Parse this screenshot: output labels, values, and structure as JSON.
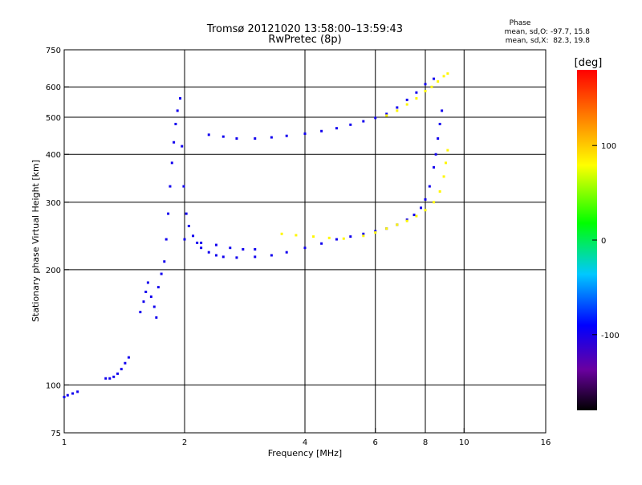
{
  "chart_data": {
    "type": "scatter",
    "title": "Tromsø 20121020 13:58:00–13:59:43",
    "subtitle": "RwPretec (8p)",
    "xlabel": "Frequency [MHz]",
    "ylabel": "Stationary phase Virtual Height [km]",
    "xscale": "log",
    "yscale": "log",
    "xlim": [
      1,
      16
    ],
    "ylim": [
      75,
      750
    ],
    "x_ticks": [
      1,
      2,
      4,
      6,
      8,
      10,
      16
    ],
    "x_tick_labels": [
      "1",
      "2",
      "4",
      "6",
      "8",
      "10",
      "16"
    ],
    "y_ticks": [
      75,
      100,
      200,
      300,
      400,
      500,
      600,
      750
    ],
    "y_tick_labels": [
      "75",
      "100",
      "200",
      "300",
      "400",
      "500",
      "600",
      "750"
    ],
    "x_gridlines": [
      2,
      4,
      6,
      8,
      10
    ],
    "y_gridlines": [
      100,
      200,
      300,
      400,
      500,
      600
    ],
    "grid": true,
    "phase_info": {
      "title": "Phase",
      "line1": "mean, sd,O: -97.7, 15.8",
      "line2": "mean, sd,X:  82.3, 19.8"
    },
    "colorbar": {
      "label": "[deg]",
      "min": -180,
      "max": 180,
      "ticks": [
        100,
        0,
        -100
      ],
      "tick_labels": [
        "100",
        "0",
        "-100"
      ],
      "colormap": "rainbow (black-purple-blue-cyan-green-yellow-orange-red)"
    },
    "series": [
      {
        "name": "O",
        "color_phase": -97.7,
        "points": [
          [
            1.0,
            93
          ],
          [
            1.02,
            94
          ],
          [
            1.05,
            95
          ],
          [
            1.08,
            96
          ],
          [
            1.27,
            104
          ],
          [
            1.3,
            104
          ],
          [
            1.33,
            105
          ],
          [
            1.36,
            107
          ],
          [
            1.39,
            110
          ],
          [
            1.42,
            114
          ],
          [
            1.45,
            118
          ],
          [
            1.55,
            155
          ],
          [
            1.58,
            165
          ],
          [
            1.6,
            175
          ],
          [
            1.62,
            185
          ],
          [
            1.65,
            170
          ],
          [
            1.68,
            160
          ],
          [
            1.7,
            150
          ],
          [
            1.72,
            180
          ],
          [
            1.75,
            195
          ],
          [
            1.78,
            210
          ],
          [
            1.8,
            240
          ],
          [
            1.82,
            280
          ],
          [
            1.84,
            330
          ],
          [
            1.86,
            380
          ],
          [
            1.88,
            430
          ],
          [
            1.9,
            480
          ],
          [
            1.92,
            520
          ],
          [
            1.95,
            560
          ],
          [
            1.97,
            420
          ],
          [
            1.99,
            330
          ],
          [
            2.02,
            280
          ],
          [
            2.05,
            260
          ],
          [
            2.1,
            245
          ],
          [
            2.15,
            235
          ],
          [
            2.2,
            228
          ],
          [
            2.3,
            222
          ],
          [
            2.4,
            218
          ],
          [
            2.5,
            216
          ],
          [
            2.7,
            215
          ],
          [
            3.0,
            216
          ],
          [
            3.3,
            218
          ],
          [
            3.6,
            222
          ],
          [
            4.0,
            228
          ],
          [
            4.4,
            234
          ],
          [
            4.8,
            240
          ],
          [
            5.2,
            244
          ],
          [
            5.6,
            248
          ],
          [
            6.0,
            252
          ],
          [
            6.4,
            256
          ],
          [
            6.8,
            262
          ],
          [
            7.2,
            270
          ],
          [
            7.5,
            278
          ],
          [
            7.8,
            290
          ],
          [
            8.0,
            305
          ],
          [
            8.2,
            330
          ],
          [
            8.4,
            370
          ],
          [
            8.5,
            400
          ],
          [
            8.6,
            440
          ],
          [
            8.7,
            480
          ],
          [
            8.8,
            520
          ],
          [
            2.0,
            240
          ],
          [
            2.2,
            235
          ],
          [
            2.4,
            232
          ],
          [
            2.6,
            228
          ],
          [
            2.8,
            226
          ],
          [
            3.0,
            226
          ],
          [
            2.3,
            450
          ],
          [
            2.5,
            445
          ],
          [
            2.7,
            440
          ],
          [
            3.0,
            440
          ],
          [
            3.3,
            443
          ],
          [
            3.6,
            447
          ],
          [
            4.0,
            453
          ],
          [
            4.4,
            460
          ],
          [
            4.8,
            468
          ],
          [
            5.2,
            478
          ],
          [
            5.6,
            488
          ],
          [
            6.0,
            498
          ],
          [
            6.4,
            510
          ],
          [
            6.8,
            530
          ],
          [
            7.2,
            555
          ],
          [
            7.6,
            580
          ],
          [
            8.0,
            610
          ],
          [
            8.4,
            630
          ]
        ]
      },
      {
        "name": "X",
        "color_phase": 82.3,
        "points": [
          [
            3.5,
            248
          ],
          [
            3.8,
            246
          ],
          [
            4.2,
            244
          ],
          [
            4.6,
            242
          ],
          [
            5.0,
            241
          ],
          [
            5.6,
            245
          ],
          [
            6.0,
            250
          ],
          [
            6.4,
            256
          ],
          [
            6.8,
            262
          ],
          [
            7.2,
            268
          ],
          [
            7.6,
            276
          ],
          [
            8.0,
            286
          ],
          [
            8.4,
            300
          ],
          [
            8.7,
            320
          ],
          [
            8.9,
            350
          ],
          [
            9.0,
            380
          ],
          [
            9.1,
            410
          ],
          [
            6.4,
            505
          ],
          [
            6.8,
            520
          ],
          [
            7.2,
            540
          ],
          [
            7.6,
            560
          ],
          [
            8.0,
            585
          ],
          [
            8.3,
            600
          ],
          [
            8.6,
            620
          ],
          [
            8.9,
            640
          ],
          [
            9.1,
            650
          ]
        ]
      }
    ]
  }
}
